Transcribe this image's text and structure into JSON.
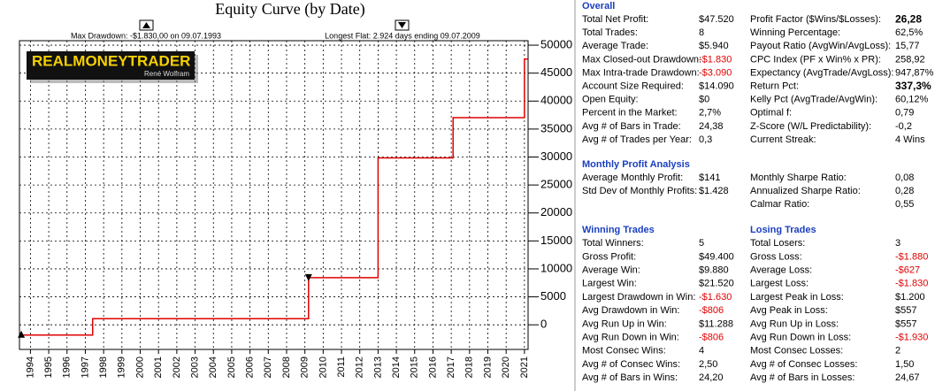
{
  "chart_data": {
    "type": "line",
    "title": "Equity Curve (by Date)",
    "annotations": [
      "Max Drawdown: -$1.830,00 on 09.07.1993",
      "Longest Flat: 2.924 days ending 09.07.2009"
    ],
    "logo": "REALMONEYTRADER",
    "logo_subtitle": "René Wolfram",
    "x": [
      1993.5,
      1997.4,
      1997.4,
      2009.2,
      2009.2,
      2013.0,
      2013.0,
      2017.1,
      2017.1,
      2021.0,
      2021.0,
      2021.2
    ],
    "values": [
      -1830,
      -1830,
      1100,
      1100,
      8440,
      8440,
      29840,
      29840,
      37030,
      37030,
      47520,
      47520
    ],
    "color": "#e00000",
    "xlim": [
      1993.4,
      2021.2
    ],
    "xticks": [
      1994,
      1995,
      1996,
      1997,
      1998,
      1999,
      2000,
      2001,
      2002,
      2003,
      2004,
      2005,
      2006,
      2007,
      2008,
      2009,
      2010,
      2011,
      2012,
      2013,
      2014,
      2015,
      2016,
      2017,
      2018,
      2019,
      2020,
      2021
    ],
    "ylim": [
      -4400,
      50800
    ],
    "yticks": [
      0,
      5000,
      10000,
      15000,
      20000,
      25000,
      30000,
      35000,
      40000,
      45000,
      50000
    ],
    "grid": true
  },
  "stats": {
    "sections": [
      {
        "titles": [
          "Overall"
        ],
        "rows": [
          [
            "Total Net Profit:",
            "$47.520",
            "Profit Factor ($Wins/$Losses):",
            "26,28"
          ],
          [
            "Total Trades:",
            "8",
            "Winning Percentage:",
            "62,5%"
          ],
          [
            "Average Trade:",
            "$5.940",
            "Payout Ratio (AvgWin/AvgLoss):",
            "15,77"
          ],
          [
            "Max Closed-out Drawdown:",
            "-$1.830",
            "CPC Index (PF x Win% x PR):",
            "258,92"
          ],
          [
            "Max Intra-trade Drawdown:",
            "-$3.090",
            "Expectancy (AvgTrade/AvgLoss):",
            "947,87%"
          ],
          [
            "Account Size Required:",
            "$14.090",
            "Return Pct:",
            "337,3%"
          ],
          [
            "Open Equity:",
            "$0",
            "Kelly Pct (AvgTrade/AvgWin):",
            "60,12%"
          ],
          [
            "Percent in the Market:",
            "2,7%",
            "Optimal f:",
            "0,79"
          ],
          [
            "Avg # of Bars in Trade:",
            "24,38",
            "Z-Score (W/L Predictability):",
            "-0,2"
          ],
          [
            "Avg # of Trades per Year:",
            "0,3",
            "Current Streak:",
            "4 Wins"
          ]
        ]
      },
      {
        "titles": [
          "Monthly Profit Analysis"
        ],
        "rows": [
          [
            "Average Monthly Profit:",
            "$141",
            "Monthly Sharpe Ratio:",
            "0,08"
          ],
          [
            "Std Dev of Monthly Profits:",
            "$1.428",
            "Annualized Sharpe Ratio:",
            "0,28"
          ],
          [
            null,
            null,
            "Calmar Ratio:",
            "0,55"
          ]
        ]
      },
      {
        "titles": [
          "Winning Trades",
          "Losing Trades"
        ],
        "rows": [
          [
            "Total Winners:",
            "5",
            "Total Losers:",
            "3"
          ],
          [
            "Gross Profit:",
            "$49.400",
            "Gross Loss:",
            "-$1.880"
          ],
          [
            "Average Win:",
            "$9.880",
            "Average Loss:",
            "-$627"
          ],
          [
            "Largest Win:",
            "$21.520",
            "Largest Loss:",
            "-$1.830"
          ],
          [
            "Largest Drawdown in Win:",
            "-$1.630",
            "Largest Peak in Loss:",
            "$1.200"
          ],
          [
            "Avg Drawdown in Win:",
            "-$806",
            "Avg Peak in Loss:",
            "$557"
          ],
          [
            "Avg Run Up in Win:",
            "$11.288",
            "Avg Run Up in Loss:",
            "$557"
          ],
          [
            "Avg Run Down in Win:",
            "-$806",
            "Avg Run Down in Loss:",
            "-$1.930"
          ],
          [
            "Most Consec Wins:",
            "4",
            "Most Consec Losses:",
            "2"
          ],
          [
            "Avg # of Consec Wins:",
            "2,50",
            "Avg # of Consec Losses:",
            "1,50"
          ],
          [
            "Avg # of Bars in Wins:",
            "24,20",
            "Avg # of Bars in Losses:",
            "24,67"
          ]
        ]
      }
    ]
  }
}
